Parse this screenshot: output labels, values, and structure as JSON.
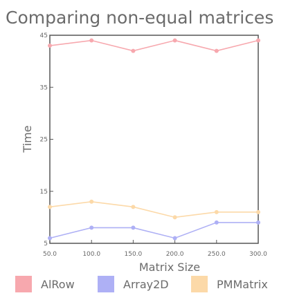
{
  "chart_data": {
    "type": "line",
    "title": "Comparing non-equal matrices",
    "xlabel": "Matrix Size",
    "ylabel": "Time",
    "x": [
      50.0,
      100.0,
      150.0,
      200.0,
      250.0,
      300.0
    ],
    "x_tick_labels": [
      "50.0",
      "100.0",
      "150.0",
      "200.0",
      "250.0",
      "300.0"
    ],
    "y_ticks": [
      5,
      15,
      25,
      35,
      45
    ],
    "y_tick_labels": [
      "5",
      "15",
      "25",
      "35",
      "45"
    ],
    "xlim": [
      50,
      300
    ],
    "ylim": [
      5,
      45
    ],
    "grid": false,
    "legend_position": "bottom",
    "series": [
      {
        "name": "AlRow",
        "color": "#f7a8ae",
        "values": [
          43,
          44,
          42,
          44,
          42,
          44
        ]
      },
      {
        "name": "Array2D",
        "color": "#aeb0f5",
        "values": [
          6,
          8,
          8,
          6,
          9,
          9
        ]
      },
      {
        "name": "PMMatrix",
        "color": "#fcd9a8",
        "values": [
          12,
          13,
          12,
          10,
          11,
          11
        ]
      }
    ]
  }
}
